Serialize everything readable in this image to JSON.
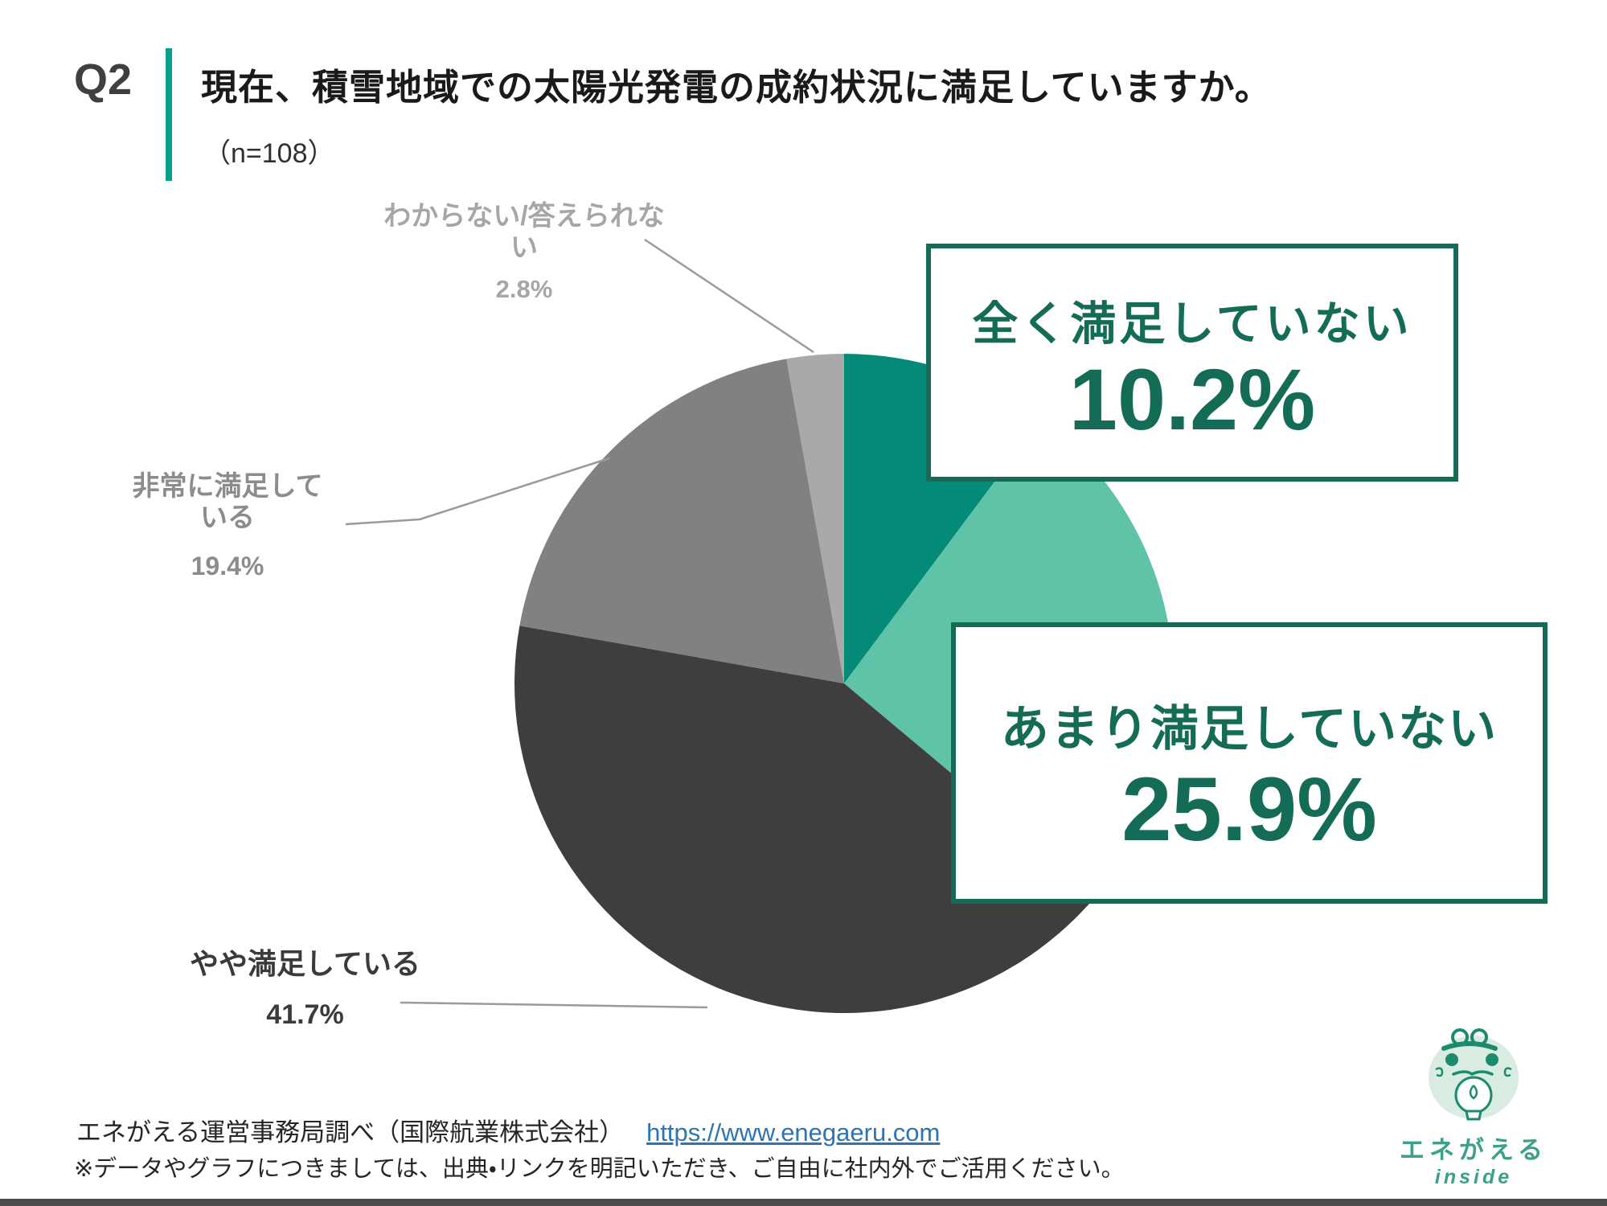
{
  "header": {
    "q_label": "Q2",
    "title": "現在、積雪地域での太陽光発電の成約状況に満足していますか。",
    "sample_size": "（n=108）"
  },
  "chart_data": {
    "type": "pie",
    "title": "現在、積雪地域での太陽光発電の成約状況に満足していますか。",
    "sample_n": 108,
    "start_angle_deg": 0,
    "direction": "clockwise",
    "legend_position": "outside-labels",
    "segments": [
      {
        "label": "全く満足していない",
        "value": 10.2,
        "display": "10.2%",
        "color": "#038B77"
      },
      {
        "label": "あまり満足していない",
        "value": 25.9,
        "display": "25.9%",
        "color": "#5FC3A8"
      },
      {
        "label": "やや満足している",
        "value": 41.7,
        "display": "41.7%",
        "color": "#3E3E3E"
      },
      {
        "label": "非常に満足している",
        "value": 19.4,
        "display": "19.4%",
        "color": "#818181"
      },
      {
        "label": "わからない/答えられない",
        "value": 2.8,
        "display": "2.8%",
        "color": "#A9A9A9"
      }
    ]
  },
  "callouts": [
    {
      "label": "全く満足していない",
      "value": "10.2%"
    },
    {
      "label": "あまり満足していない",
      "value": "25.9%"
    }
  ],
  "footer": {
    "source": "エネがえる運営事務局調べ（国際航業株式会社）",
    "link": "https://www.enegaeru.com",
    "note": "※データやグラフにつきましては、出典・リンクを明記いただき、ご自由に社内外でご活用ください。"
  },
  "logo": {
    "name": "エネがえる",
    "sub": "inside"
  },
  "colors": {
    "accent_teal": "#0C9E8C",
    "callout_green": "#146C56",
    "link_blue": "#2E74B5",
    "leader_line_gray": "#9A9A9A"
  }
}
